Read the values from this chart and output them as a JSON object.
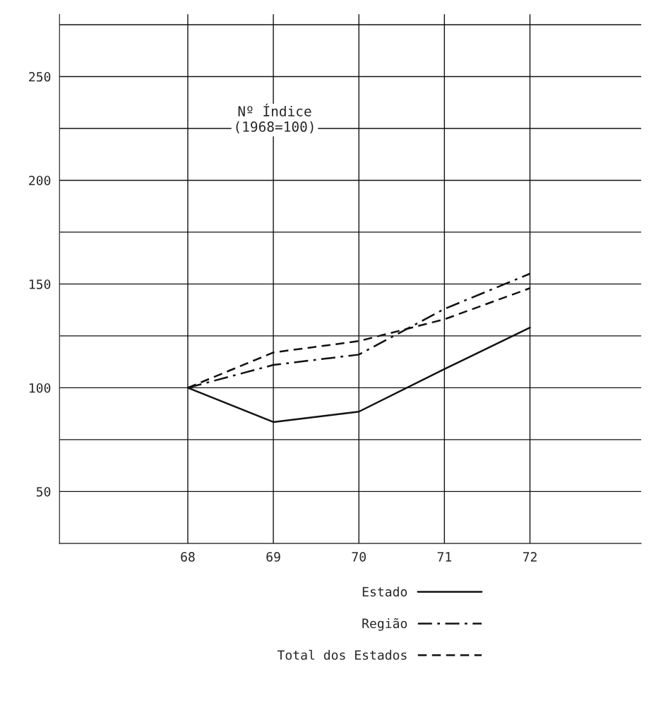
{
  "chart_data": {
    "type": "line",
    "x": [
      68,
      69,
      70,
      71,
      72
    ],
    "series": [
      {
        "name": "Estado",
        "color": "#111111",
        "line_style": "solid",
        "values": [
          100,
          83.5,
          88.5,
          109,
          129
        ]
      },
      {
        "name": "Região",
        "color": "#111111",
        "line_style": "dashdot",
        "values": [
          100,
          111,
          116,
          138,
          155
        ]
      },
      {
        "name": "Total dos Estados",
        "color": "#111111",
        "line_style": "dashed",
        "values": [
          100,
          117,
          122.5,
          133,
          148
        ]
      }
    ],
    "xlim": [
      66.5,
      73.3
    ],
    "ylim": [
      25,
      280
    ],
    "xticks": [
      {
        "value": 68,
        "label": "68"
      },
      {
        "value": 69,
        "label": "69"
      },
      {
        "value": 70,
        "label": "70"
      },
      {
        "value": 71,
        "label": "71"
      },
      {
        "value": 72,
        "label": "72"
      }
    ],
    "yticks": [
      50,
      {
        "value": 75,
        "label": null
      },
      100,
      {
        "value": 125,
        "label": null
      },
      150,
      {
        "value": 175,
        "label": null
      },
      200,
      {
        "value": 225,
        "label": null
      },
      250,
      {
        "value": 275,
        "label": null
      }
    ],
    "grid": true,
    "legend": "bottom",
    "annotations": [
      "Nº Índice\n(1968=100)"
    ]
  }
}
